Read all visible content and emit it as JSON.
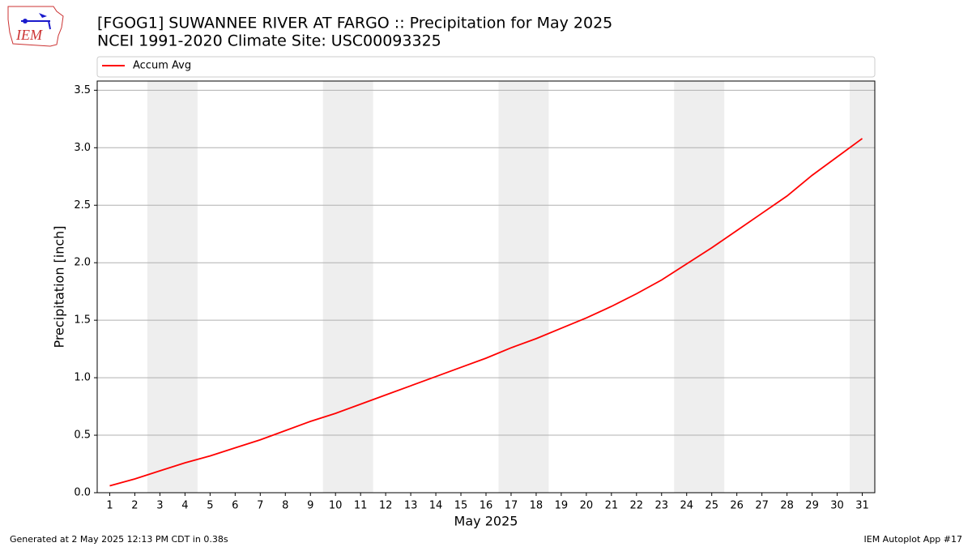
{
  "chart_data": {
    "type": "line",
    "title": "[FGOG1] SUWANNEE RIVER  AT FARGO :: Precipitation for May 2025",
    "subtitle": "NCEI 1991-2020 Climate Site: USC00093325",
    "x_label": "May 2025",
    "y_label": "Precipitation [inch]",
    "x": [
      1,
      2,
      3,
      4,
      5,
      6,
      7,
      8,
      9,
      10,
      11,
      12,
      13,
      14,
      15,
      16,
      17,
      18,
      19,
      20,
      21,
      22,
      23,
      24,
      25,
      26,
      27,
      28,
      29,
      30,
      31
    ],
    "series": [
      {
        "name": "Accum Avg",
        "color": "#ff0000",
        "values": [
          0.06,
          0.12,
          0.19,
          0.26,
          0.32,
          0.39,
          0.46,
          0.54,
          0.62,
          0.69,
          0.77,
          0.85,
          0.93,
          1.01,
          1.09,
          1.17,
          1.26,
          1.34,
          1.43,
          1.52,
          1.62,
          1.73,
          1.85,
          1.99,
          2.13,
          2.28,
          2.43,
          2.58,
          2.76,
          2.92,
          3.08
        ]
      }
    ],
    "shaded_spans": [
      [
        2.5,
        4.5
      ],
      [
        9.5,
        11.5
      ],
      [
        16.5,
        18.5
      ],
      [
        23.5,
        25.5
      ],
      [
        30.5,
        31.5
      ]
    ],
    "shade_color": "#eeeeee",
    "xlim": [
      0.5,
      31.5
    ],
    "ylim": [
      0,
      3.58
    ],
    "xticks": [
      1,
      2,
      3,
      4,
      5,
      6,
      7,
      8,
      9,
      10,
      11,
      12,
      13,
      14,
      15,
      16,
      17,
      18,
      19,
      20,
      21,
      22,
      23,
      24,
      25,
      26,
      27,
      28,
      29,
      30,
      31
    ],
    "yticks": [
      {
        "value": 0,
        "label": "0.0"
      },
      0.5,
      {
        "value": 1,
        "label": "1.0"
      },
      1.5,
      {
        "value": 2,
        "label": "2.0"
      },
      2.5,
      {
        "value": 3,
        "label": "3.0"
      },
      3.5
    ],
    "grid": "y",
    "legend": "top",
    "footer_left": "Generated at 2 May 2025 12:13 PM CDT in 0.38s",
    "footer_right": "IEM Autoplot App #17",
    "logo_text": "IEM"
  }
}
